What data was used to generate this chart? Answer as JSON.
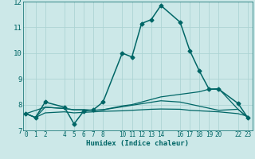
{
  "xlabel": "Humidex (Indice chaleur)",
  "bg_color": "#cce8e8",
  "grid_color": "#add4d4",
  "line_color": "#006666",
  "xticks": [
    0,
    1,
    2,
    4,
    5,
    6,
    7,
    8,
    10,
    11,
    12,
    13,
    14,
    16,
    17,
    18,
    19,
    20,
    22,
    23
  ],
  "xlim": [
    -0.3,
    23.5
  ],
  "ylim": [
    7,
    12
  ],
  "yticks": [
    7,
    8,
    9,
    10,
    11,
    12
  ],
  "series": [
    {
      "x": [
        0,
        1,
        2,
        4,
        5,
        6,
        7,
        8,
        10,
        11,
        12,
        13,
        14,
        16,
        17,
        18,
        19,
        20,
        22,
        23
      ],
      "y": [
        7.65,
        7.5,
        8.1,
        7.9,
        7.25,
        7.75,
        7.8,
        8.1,
        10.0,
        9.85,
        11.15,
        11.3,
        11.85,
        11.2,
        10.1,
        9.3,
        8.6,
        8.6,
        8.05,
        7.5
      ],
      "marker": "D",
      "markersize": 2.5,
      "linewidth": 1.1
    },
    {
      "x": [
        0,
        1,
        2,
        4,
        5,
        6,
        7,
        8,
        10,
        11,
        12,
        13,
        14,
        16,
        17,
        18,
        19,
        20,
        22,
        23
      ],
      "y": [
        7.65,
        7.5,
        7.9,
        7.85,
        7.8,
        7.8,
        7.78,
        7.8,
        7.95,
        8.0,
        8.1,
        8.2,
        8.3,
        8.4,
        8.45,
        8.5,
        8.6,
        8.62,
        7.82,
        7.5
      ],
      "marker": null,
      "markersize": 0,
      "linewidth": 0.9
    },
    {
      "x": [
        0,
        1,
        2,
        4,
        5,
        6,
        7,
        8,
        10,
        11,
        12,
        13,
        14,
        16,
        17,
        18,
        19,
        20,
        22,
        23
      ],
      "y": [
        7.65,
        7.5,
        7.68,
        7.72,
        7.68,
        7.7,
        7.72,
        7.74,
        7.76,
        7.78,
        7.8,
        7.82,
        7.83,
        7.82,
        7.78,
        7.76,
        7.74,
        7.72,
        7.65,
        7.55
      ],
      "marker": null,
      "markersize": 0,
      "linewidth": 0.9
    },
    {
      "x": [
        0,
        2,
        4,
        5,
        6,
        7,
        8,
        14,
        16,
        20,
        22,
        23
      ],
      "y": [
        7.65,
        7.9,
        7.85,
        7.8,
        7.8,
        7.78,
        7.8,
        8.15,
        8.1,
        7.78,
        7.82,
        7.5
      ],
      "marker": null,
      "markersize": 0,
      "linewidth": 0.9
    }
  ]
}
